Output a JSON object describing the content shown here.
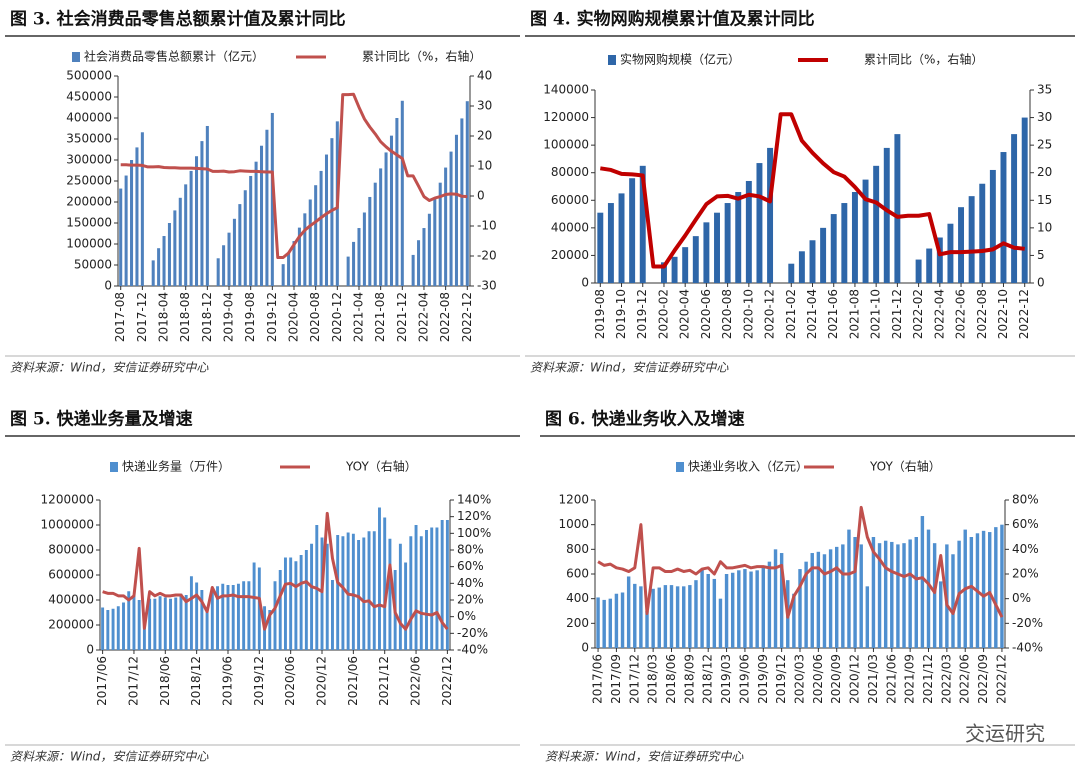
{
  "watermark": "交运研究",
  "chart_data": [
    {
      "type": "bar-line",
      "title": "图 3. 社会消费品零售总额累计值及累计同比",
      "note": "资料来源：Wind，安信证券研究中心",
      "categories": [
        "2017-08",
        null,
        null,
        null,
        "2017-12",
        null,
        null,
        null,
        "2018-04",
        null,
        null,
        null,
        "2018-08",
        null,
        null,
        null,
        "2018-12",
        null,
        null,
        null,
        "2019-04",
        null,
        null,
        null,
        "2019-08",
        null,
        null,
        null,
        "2019-12",
        null,
        null,
        null,
        "2020-04",
        null,
        null,
        null,
        "2020-08",
        null,
        null,
        null,
        "2020-12",
        null,
        null,
        null,
        "2021-04",
        null,
        null,
        null,
        "2021-08",
        null,
        null,
        null,
        "2021-12",
        null,
        null,
        null,
        "2022-04",
        null,
        null,
        null,
        "2022-08",
        null,
        null,
        null,
        "2022-12"
      ],
      "series": [
        {
          "name": "社会消费品零售总额累计（亿元）",
          "color": "#4f81bd",
          "kind": "bar",
          "values": [
            232000,
            263000,
            300000,
            330000,
            366000,
            null,
            61000,
            90000,
            119000,
            150000,
            180000,
            210000,
            242000,
            274000,
            309000,
            345000,
            381000,
            null,
            66000,
            97000,
            127000,
            160000,
            195000,
            228000,
            262000,
            296000,
            334000,
            372000,
            412000,
            null,
            52000,
            79000,
            107000,
            139000,
            173000,
            206000,
            240000,
            274000,
            313000,
            352000,
            392000,
            null,
            70000,
            105000,
            138000,
            175000,
            212000,
            246000,
            280000,
            318000,
            358000,
            400000,
            441000,
            null,
            74000,
            109000,
            138000,
            172000,
            211000,
            246000,
            282000,
            320000,
            360000,
            399000,
            440000
          ]
        },
        {
          "name": "累计同比（%，右轴）",
          "color": "#c0504d",
          "kind": "line",
          "axis": "y2",
          "values": [
            10.4,
            10.4,
            10.3,
            10.3,
            10.2,
            9.7,
            9.7,
            9.8,
            9.5,
            9.4,
            9.4,
            9.3,
            9.3,
            9.3,
            9.2,
            9.1,
            9.0,
            8.2,
            8.2,
            8.3,
            8.0,
            8.1,
            8.4,
            8.3,
            8.2,
            8.2,
            8.1,
            8.0,
            8.0,
            -20.5,
            -20.5,
            -19.0,
            -16.2,
            -13.5,
            -11.4,
            -9.9,
            -8.6,
            -7.2,
            -5.9,
            -4.8,
            -3.9,
            33.8,
            33.8,
            33.9,
            29.6,
            25.7,
            23.0,
            20.7,
            18.1,
            16.4,
            14.9,
            13.7,
            12.5,
            6.7,
            6.7,
            3.3,
            -0.2,
            -1.5,
            -0.7,
            -0.2,
            0.5,
            0.7,
            0.6,
            -0.1,
            -0.2
          ]
        }
      ],
      "ylim": [
        0,
        500000
      ],
      "yticks": [
        0,
        50000,
        100000,
        150000,
        200000,
        250000,
        300000,
        350000,
        400000,
        450000,
        500000
      ],
      "y2lim": [
        -30,
        40
      ],
      "y2ticks": [
        -30,
        -20,
        -10,
        0,
        10,
        20,
        30,
        40
      ]
    },
    {
      "type": "bar-line",
      "title": "图 4. 实物网购规模累计值及累计同比",
      "note": "资料来源：Wind，安信证券研究中心",
      "categories": [
        "2019-08",
        null,
        "2019-10",
        null,
        "2019-12",
        null,
        "2020-02",
        null,
        "2020-04",
        null,
        "2020-06",
        null,
        "2020-08",
        null,
        "2020-10",
        null,
        "2020-12",
        null,
        "2021-02",
        null,
        "2021-04",
        null,
        "2021-06",
        null,
        "2021-08",
        null,
        "2021-10",
        null,
        "2021-12",
        null,
        "2022-02",
        null,
        "2022-04",
        null,
        "2022-06",
        null,
        "2022-08",
        null,
        "2022-10",
        null,
        "2022-12"
      ],
      "series": [
        {
          "name": "实物网购规模（亿元）",
          "color": "#2e66a8",
          "kind": "bar",
          "values": [
            51000,
            58000,
            65000,
            76000,
            85000,
            null,
            15000,
            19000,
            26000,
            34000,
            44000,
            51000,
            58000,
            66000,
            74000,
            87000,
            98000,
            null,
            14000,
            23000,
            31000,
            40000,
            50000,
            58000,
            66000,
            75000,
            85000,
            98000,
            108000,
            null,
            17000,
            25000,
            33000,
            43000,
            55000,
            63000,
            72000,
            82000,
            95000,
            108000,
            120000
          ]
        },
        {
          "name": "累计同比（%，右轴）",
          "color": "#c00000",
          "kind": "line",
          "axis": "y2",
          "values": [
            20.8,
            20.5,
            19.8,
            19.7,
            19.5,
            3.0,
            3.0,
            5.9,
            8.6,
            11.5,
            14.3,
            15.7,
            15.8,
            15.3,
            16.0,
            15.7,
            14.8,
            30.6,
            30.6,
            25.8,
            23.6,
            21.7,
            20.1,
            19.3,
            17.4,
            15.2,
            14.6,
            13.2,
            12.0,
            12.2,
            12.2,
            12.5,
            5.2,
            5.6,
            5.6,
            5.7,
            5.8,
            6.1,
            7.2,
            6.4,
            6.2
          ]
        }
      ],
      "ylim": [
        0,
        140000
      ],
      "yticks": [
        0,
        20000,
        40000,
        60000,
        80000,
        100000,
        120000,
        140000
      ],
      "y2lim": [
        0,
        35
      ],
      "y2ticks": [
        0,
        5,
        10,
        15,
        20,
        25,
        30,
        35
      ]
    },
    {
      "type": "bar-line",
      "title": "图 5. 快递业务量及增速",
      "note": "资料来源：Wind，安信证券研究中心",
      "categories": [
        "2017/06",
        null,
        null,
        null,
        null,
        null,
        "2017/12",
        null,
        null,
        null,
        null,
        null,
        "2018/06",
        null,
        null,
        null,
        null,
        null,
        "2018/12",
        null,
        null,
        null,
        null,
        null,
        "2019/06",
        null,
        null,
        null,
        null,
        null,
        "2019/12",
        null,
        null,
        null,
        null,
        null,
        "2020/06",
        null,
        null,
        null,
        null,
        null,
        "2020/12",
        null,
        null,
        null,
        null,
        null,
        "2021/06",
        null,
        null,
        null,
        null,
        null,
        "2021/12",
        null,
        null,
        null,
        null,
        null,
        "2022/06",
        null,
        null,
        null,
        null,
        null,
        "2022/12"
      ],
      "series": [
        {
          "name": "快递业务量（万件）",
          "color": "#4f8fcf",
          "kind": "bar",
          "values": [
            340000,
            320000,
            330000,
            350000,
            380000,
            470000,
            440000,
            400000,
            300000,
            410000,
            410000,
            430000,
            420000,
            410000,
            420000,
            450000,
            440000,
            590000,
            540000,
            480000,
            330000,
            500000,
            510000,
            530000,
            520000,
            520000,
            530000,
            550000,
            550000,
            700000,
            660000,
            350000,
            320000,
            550000,
            640000,
            740000,
            740000,
            710000,
            760000,
            800000,
            850000,
            1000000,
            900000,
            850000,
            560000,
            920000,
            910000,
            940000,
            930000,
            880000,
            900000,
            950000,
            950000,
            1140000,
            1060000,
            890000,
            640000,
            850000,
            700000,
            910000,
            1000000,
            910000,
            960000,
            980000,
            980000,
            1040000,
            1040000
          ]
        },
        {
          "name": "YOY（右轴）",
          "color": "#c0504d",
          "kind": "line",
          "axis": "y2",
          "values": [
            30,
            28,
            28,
            25,
            25,
            20,
            25,
            82,
            -14,
            30,
            25,
            28,
            25,
            25,
            26,
            26,
            18,
            22,
            26,
            18,
            6,
            35,
            22,
            25,
            25,
            26,
            24,
            24,
            24,
            23,
            22,
            -15,
            2,
            10,
            25,
            39,
            40,
            36,
            40,
            42,
            36,
            34,
            30,
            124,
            70,
            41,
            35,
            27,
            26,
            24,
            18,
            19,
            12,
            14,
            12,
            62,
            5,
            -8,
            -15,
            -3,
            7,
            4,
            3,
            2,
            5,
            -7,
            -15
          ]
        }
      ],
      "ylim": [
        0,
        1200000
      ],
      "yticks": [
        0,
        200000,
        400000,
        600000,
        800000,
        1000000,
        1200000
      ],
      "y2lim": [
        -40,
        140
      ],
      "y2ticks": [
        {
          "value": -40,
          "label": "-40%"
        },
        {
          "value": -20,
          "label": "-20%"
        },
        {
          "value": 0,
          "label": "0%"
        },
        {
          "value": 20,
          "label": "20%"
        },
        {
          "value": 40,
          "label": "40%"
        },
        {
          "value": 60,
          "label": "60%"
        },
        {
          "value": 80,
          "label": "80%"
        },
        {
          "value": 100,
          "label": "100%"
        },
        {
          "value": 120,
          "label": "120%"
        },
        {
          "value": 140,
          "label": "140%"
        }
      ]
    },
    {
      "type": "bar-line",
      "title": "图 6. 快递业务收入及增速",
      "note": "资料来源：Wind，安信证券研究中心",
      "categories": [
        "2017/06",
        null,
        null,
        "2017/09",
        null,
        null,
        "2017/12",
        null,
        null,
        "2018/03",
        null,
        null,
        "2018/06",
        null,
        null,
        "2018/09",
        null,
        null,
        "2018/12",
        null,
        null,
        "2019/03",
        null,
        null,
        "2019/06",
        null,
        null,
        "2019/09",
        null,
        null,
        "2019/12",
        null,
        null,
        "2020/03",
        null,
        null,
        "2020/06",
        null,
        null,
        "2020/09",
        null,
        null,
        "2020/12",
        null,
        null,
        "2021/03",
        null,
        null,
        "2021/06",
        null,
        null,
        "2021/09",
        null,
        null,
        "2021/12",
        null,
        null,
        "2022/03",
        null,
        null,
        "2022/06",
        null,
        null,
        "2022/09",
        null,
        null,
        "2022/12"
      ],
      "series": [
        {
          "name": "快递业务收入（亿元）",
          "color": "#4f8fcf",
          "kind": "bar",
          "values": [
            410,
            390,
            400,
            440,
            450,
            580,
            520,
            500,
            300,
            480,
            490,
            510,
            510,
            500,
            500,
            510,
            550,
            640,
            600,
            560,
            400,
            600,
            610,
            630,
            640,
            620,
            630,
            660,
            700,
            800,
            770,
            550,
            440,
            640,
            700,
            770,
            780,
            760,
            800,
            820,
            840,
            960,
            900,
            840,
            500,
            900,
            850,
            870,
            860,
            840,
            850,
            880,
            900,
            1070,
            960,
            850,
            540,
            840,
            760,
            870,
            960,
            900,
            930,
            950,
            940,
            980,
            1000
          ]
        },
        {
          "name": "YOY（右轴）",
          "color": "#c0504d",
          "kind": "line",
          "axis": "y2",
          "values": [
            30,
            27,
            28,
            25,
            24,
            22,
            25,
            60,
            -12,
            25,
            25,
            22,
            22,
            24,
            22,
            23,
            20,
            24,
            25,
            20,
            30,
            25,
            25,
            26,
            27,
            25,
            26,
            26,
            25,
            25,
            27,
            -15,
            2,
            10,
            20,
            25,
            25,
            20,
            22,
            25,
            20,
            20,
            22,
            74,
            50,
            38,
            32,
            25,
            22,
            20,
            18,
            20,
            16,
            17,
            12,
            5,
            35,
            -5,
            -12,
            4,
            8,
            10,
            6,
            2,
            5,
            -5,
            -15
          ]
        }
      ],
      "ylim": [
        0,
        1200
      ],
      "yticks": [
        0,
        200,
        400,
        600,
        800,
        1000,
        1200
      ],
      "y2lim": [
        -40,
        80
      ],
      "y2ticks": [
        {
          "value": -40,
          "label": "-40%"
        },
        {
          "value": -20,
          "label": "-20%"
        },
        {
          "value": 0,
          "label": "0%"
        },
        {
          "value": 20,
          "label": "20%"
        },
        {
          "value": 40,
          "label": "40%"
        },
        {
          "value": 60,
          "label": "60%"
        },
        {
          "value": 80,
          "label": "80%"
        }
      ]
    }
  ]
}
